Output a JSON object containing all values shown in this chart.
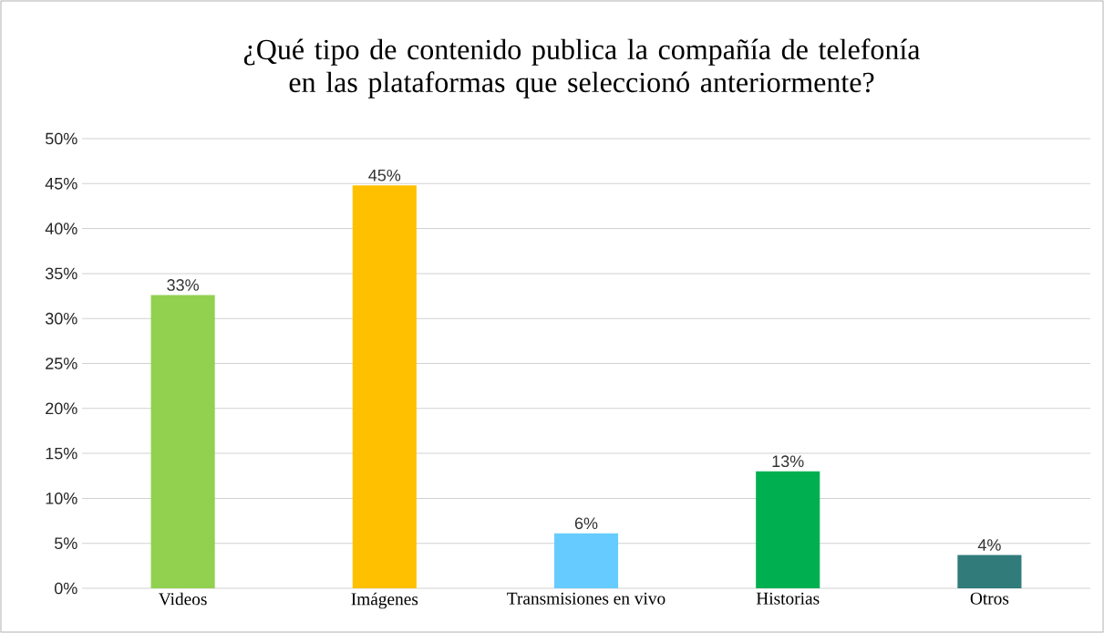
{
  "chart_data": {
    "type": "bar",
    "title": "¿Qué tipo de contenido publica la compañía de telefonía en las plataformas que seleccionó anteriormente?",
    "categories": [
      "Videos",
      "Imágenes",
      "Transmisiones en vivo",
      "Historias",
      "Otros"
    ],
    "values": [
      32.6,
      44.8,
      6.1,
      13.0,
      3.7
    ],
    "value_labels": [
      "33%",
      "45%",
      "6%",
      "13%",
      "4%"
    ],
    "colors": [
      "#92d050",
      "#ffc000",
      "#66ccff",
      "#00b050",
      "#317b7b"
    ],
    "ylim": [
      0,
      50
    ],
    "yticks": [
      {
        "value": 0,
        "label": "0%"
      },
      {
        "value": 5,
        "label": "5%"
      },
      {
        "value": 10,
        "label": "10%"
      },
      {
        "value": 15,
        "label": "15%"
      },
      {
        "value": 20,
        "label": "20%"
      },
      {
        "value": 25,
        "label": "25%"
      },
      {
        "value": 30,
        "label": "30%"
      },
      {
        "value": 35,
        "label": "35%"
      },
      {
        "value": 40,
        "label": "40%"
      },
      {
        "value": 45,
        "label": "45%"
      },
      {
        "value": 50,
        "label": "50%"
      }
    ],
    "grid": "y"
  }
}
